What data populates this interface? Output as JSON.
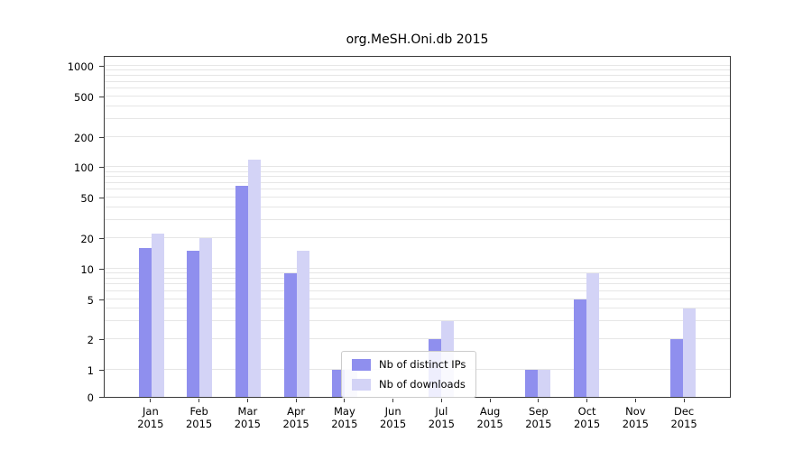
{
  "title": "org.MeSH.Oni.db 2015",
  "chart_data": {
    "type": "bar",
    "title": "org.MeSH.Oni.db 2015",
    "categories": [
      "Jan 2015",
      "Feb 2015",
      "Mar 2015",
      "Apr 2015",
      "May 2015",
      "Jun 2015",
      "Jul 2015",
      "Aug 2015",
      "Sep 2015",
      "Oct 2015",
      "Nov 2015",
      "Dec 2015"
    ],
    "series": [
      {
        "name": "Nb of distinct IPs",
        "color": "#8f8fee",
        "values": [
          16,
          15,
          65,
          9,
          1,
          0,
          2,
          0,
          1,
          5,
          0,
          2
        ]
      },
      {
        "name": "Nb of downloads",
        "color": "#d3d3f6",
        "values": [
          22,
          20,
          120,
          15,
          1,
          0,
          3,
          0,
          1,
          9,
          0,
          4
        ]
      }
    ],
    "axis": {
      "yscale": "log",
      "ylim": [
        0,
        1000
      ],
      "yticks": [
        0,
        1,
        2,
        5,
        10,
        20,
        50,
        100,
        200,
        500,
        1000
      ],
      "grid_values": [
        1,
        2,
        3,
        4,
        5,
        6,
        7,
        8,
        9,
        10,
        20,
        30,
        40,
        50,
        60,
        70,
        80,
        90,
        100,
        200,
        300,
        400,
        500,
        600,
        700,
        800,
        900,
        1000
      ],
      "grid": true
    },
    "legend": {
      "position": "lower center"
    }
  }
}
